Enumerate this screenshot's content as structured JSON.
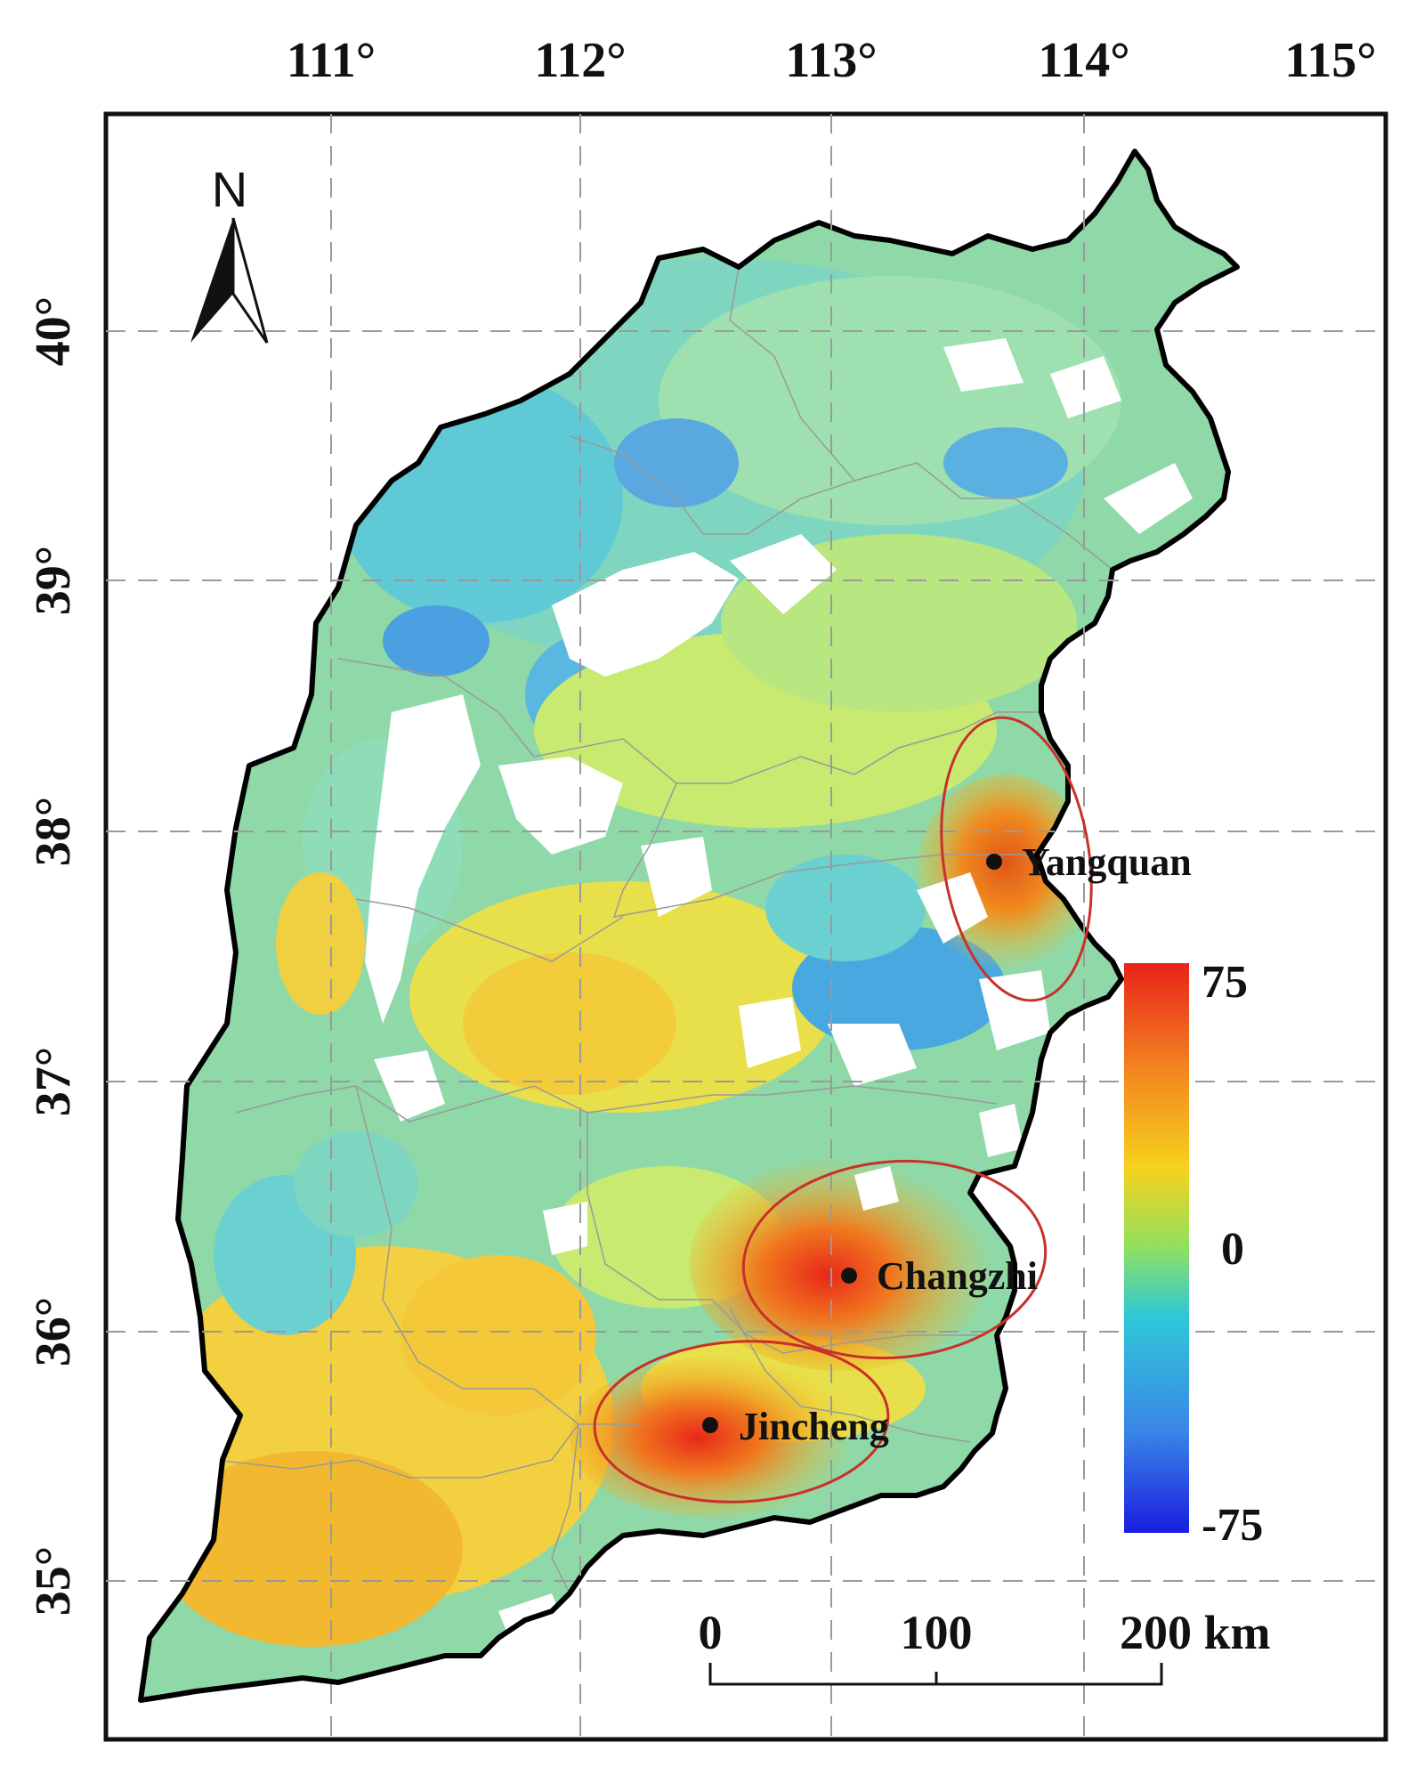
{
  "map": {
    "lon_ticks": [
      "111°",
      "112°",
      "113°",
      "114°",
      "115°"
    ],
    "lat_ticks": [
      "40°",
      "39°",
      "38°",
      "37°",
      "36°",
      "35°"
    ],
    "north_label": "N",
    "cities": [
      {
        "name": "Yangquan"
      },
      {
        "name": "Changzhi"
      },
      {
        "name": "Jincheng"
      }
    ],
    "colorbar": {
      "max_label": "75",
      "mid_label": "0",
      "min_label": "-75",
      "colors": [
        "#e8231a",
        "#f3811f",
        "#f6d21c",
        "#d9ec3c",
        "#5fd07a",
        "#2fc8d8",
        "#3a86e6",
        "#1a1ee0"
      ]
    },
    "scale_bar": {
      "labels": [
        "0",
        "100",
        "200 km"
      ]
    },
    "hotspot_color": "#c8312a"
  }
}
